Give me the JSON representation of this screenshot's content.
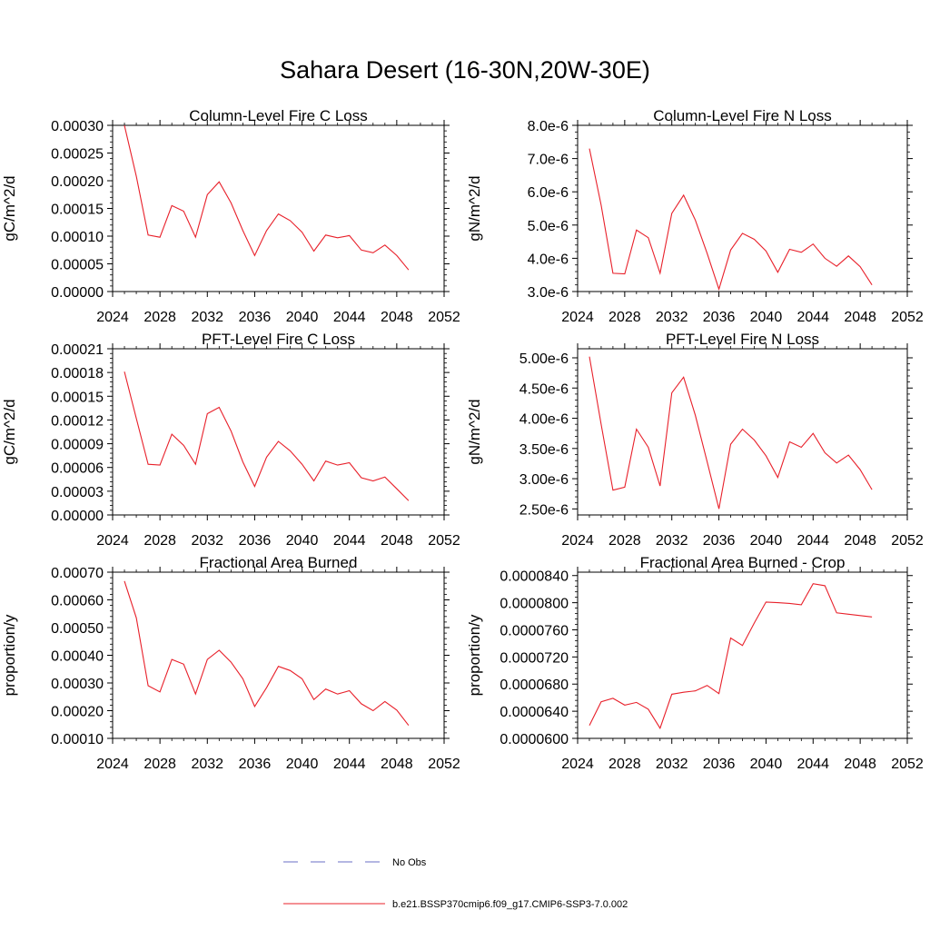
{
  "page": {
    "title": "Sahara Desert (16-30N,20W-30E)"
  },
  "legend": {
    "entries": [
      {
        "label": "No Obs",
        "color": "#6a6fc6",
        "dash": "dashed"
      },
      {
        "label": "b.e21.BSSP370cmip6.f09_g17.CMIP6-SSP3-7.0.002",
        "color": "#e8202a",
        "dash": "solid"
      }
    ]
  },
  "chart_data": [
    {
      "type": "line",
      "title": "Column-Level Fire C Loss",
      "ylabel": "gC/m^2/d",
      "xlim": [
        2024,
        2052
      ],
      "ylim": [
        0.0,
        0.0003
      ],
      "xticks": [
        2024,
        2028,
        2032,
        2036,
        2040,
        2044,
        2048,
        2052
      ],
      "yticks": [
        0.0,
        5e-05,
        0.0001,
        0.00015,
        0.0002,
        0.00025,
        0.0003
      ],
      "ytick_labels": [
        "0.00000",
        "0.00005",
        "0.00010",
        "0.00015",
        "0.00020",
        "0.00025",
        "0.00030"
      ],
      "series": [
        {
          "color": "#e8202a",
          "x": [
            2025,
            2026,
            2027,
            2028,
            2029,
            2030,
            2031,
            2032,
            2033,
            2034,
            2035,
            2036,
            2037,
            2038,
            2039,
            2040,
            2041,
            2042,
            2043,
            2044,
            2045,
            2046,
            2047,
            2048,
            2049
          ],
          "y": [
            0.0003,
            0.000208,
            0.000102,
            9.8e-05,
            0.000155,
            0.000145,
            9.8e-05,
            0.000175,
            0.000198,
            0.00016,
            0.00011,
            6.5e-05,
            0.00011,
            0.00014,
            0.000128,
            0.000107,
            7.3e-05,
            0.000102,
            9.7e-05,
            0.000101,
            7.5e-05,
            7e-05,
            8.4e-05,
            6.5e-05,
            3.9e-05
          ]
        }
      ]
    },
    {
      "type": "line",
      "title": "Column-Level Fire N Loss",
      "ylabel": "gN/m^2/d",
      "xlim": [
        2024,
        2052
      ],
      "ylim": [
        3e-06,
        8e-06
      ],
      "xticks": [
        2024,
        2028,
        2032,
        2036,
        2040,
        2044,
        2048,
        2052
      ],
      "yticks": [
        3e-06,
        4e-06,
        5e-06,
        6e-06,
        7e-06,
        8e-06
      ],
      "ytick_labels": [
        "3.0e-6",
        "4.0e-6",
        "5.0e-6",
        "6.0e-6",
        "7.0e-6",
        "8.0e-6"
      ],
      "series": [
        {
          "color": "#e8202a",
          "x": [
            2025,
            2026,
            2027,
            2028,
            2029,
            2030,
            2031,
            2032,
            2033,
            2034,
            2035,
            2036,
            2037,
            2038,
            2039,
            2040,
            2041,
            2042,
            2043,
            2044,
            2045,
            2046,
            2047,
            2048,
            2049
          ],
          "y": [
            7.3e-06,
            5.6e-06,
            3.55e-06,
            3.53e-06,
            4.85e-06,
            4.62e-06,
            3.55e-06,
            5.35e-06,
            5.9e-06,
            5.15e-06,
            4.15e-06,
            3.07e-06,
            4.25e-06,
            4.75e-06,
            4.57e-06,
            4.22e-06,
            3.58e-06,
            4.27e-06,
            4.18e-06,
            4.43e-06,
            4e-06,
            3.76e-06,
            4.07e-06,
            3.75e-06,
            3.2e-06
          ]
        }
      ]
    },
    {
      "type": "line",
      "title": "PFT-Level Fire C Loss",
      "ylabel": "gC/m^2/d",
      "xlim": [
        2024,
        2052
      ],
      "ylim": [
        0.0,
        0.00021
      ],
      "xticks": [
        2024,
        2028,
        2032,
        2036,
        2040,
        2044,
        2048,
        2052
      ],
      "yticks": [
        0.0,
        3e-05,
        6e-05,
        9e-05,
        0.00012,
        0.00015,
        0.00018,
        0.00021
      ],
      "ytick_labels": [
        "0.00000",
        "0.00003",
        "0.00006",
        "0.00009",
        "0.00012",
        "0.00015",
        "0.00018",
        "0.00021"
      ],
      "series": [
        {
          "color": "#e8202a",
          "x": [
            2025,
            2026,
            2027,
            2028,
            2029,
            2030,
            2031,
            2032,
            2033,
            2034,
            2035,
            2036,
            2037,
            2038,
            2039,
            2040,
            2041,
            2042,
            2043,
            2044,
            2045,
            2046,
            2047,
            2048,
            2049
          ],
          "y": [
            0.000181,
            0.000122,
            6.4e-05,
            6.3e-05,
            0.000102,
            8.8e-05,
            6.4e-05,
            0.000128,
            0.000136,
            0.000106,
            6.7e-05,
            3.6e-05,
            7.3e-05,
            9.3e-05,
            8.1e-05,
            6.4e-05,
            4.3e-05,
            6.8e-05,
            6.3e-05,
            6.6e-05,
            4.7e-05,
            4.3e-05,
            4.8e-05,
            3.3e-05,
            1.8e-05
          ]
        }
      ]
    },
    {
      "type": "line",
      "title": "PFT-Level Fire N Loss",
      "ylabel": "gN/m^2/d",
      "xlim": [
        2024,
        2052
      ],
      "ylim": [
        2.4e-06,
        5.15e-06
      ],
      "xticks": [
        2024,
        2028,
        2032,
        2036,
        2040,
        2044,
        2048,
        2052
      ],
      "yticks": [
        2.5e-06,
        3e-06,
        3.5e-06,
        4e-06,
        4.5e-06,
        5e-06
      ],
      "ytick_labels": [
        "2.50e-6",
        "3.00e-6",
        "3.50e-6",
        "4.00e-6",
        "4.50e-6",
        "5.00e-6"
      ],
      "series": [
        {
          "color": "#e8202a",
          "x": [
            2025,
            2026,
            2027,
            2028,
            2029,
            2030,
            2031,
            2032,
            2033,
            2034,
            2035,
            2036,
            2037,
            2038,
            2039,
            2040,
            2041,
            2042,
            2043,
            2044,
            2045,
            2046,
            2047,
            2048,
            2049
          ],
          "y": [
            5.02e-06,
            3.9e-06,
            2.81e-06,
            2.86e-06,
            3.82e-06,
            3.52e-06,
            2.88e-06,
            4.42e-06,
            4.68e-06,
            4.05e-06,
            3.28e-06,
            2.5e-06,
            3.57e-06,
            3.82e-06,
            3.64e-06,
            3.38e-06,
            3.02e-06,
            3.61e-06,
            3.52e-06,
            3.75e-06,
            3.43e-06,
            3.26e-06,
            3.39e-06,
            3.15e-06,
            2.82e-06
          ]
        }
      ]
    },
    {
      "type": "line",
      "title": "Fractional Area Burned",
      "ylabel": "proportion/y",
      "xlim": [
        2024,
        2052
      ],
      "ylim": [
        0.0001,
        0.0007
      ],
      "xticks": [
        2024,
        2028,
        2032,
        2036,
        2040,
        2044,
        2048,
        2052
      ],
      "yticks": [
        0.0001,
        0.0002,
        0.0003,
        0.0004,
        0.0005,
        0.0006,
        0.0007
      ],
      "ytick_labels": [
        "0.00010",
        "0.00020",
        "0.00030",
        "0.00040",
        "0.00050",
        "0.00060",
        "0.00070"
      ],
      "series": [
        {
          "color": "#e8202a",
          "x": [
            2025,
            2026,
            2027,
            2028,
            2029,
            2030,
            2031,
            2032,
            2033,
            2034,
            2035,
            2036,
            2037,
            2038,
            2039,
            2040,
            2041,
            2042,
            2043,
            2044,
            2045,
            2046,
            2047,
            2048,
            2049
          ],
          "y": [
            0.000668,
            0.000535,
            0.00029,
            0.000268,
            0.000385,
            0.000368,
            0.00026,
            0.000385,
            0.000418,
            0.000375,
            0.000315,
            0.000215,
            0.000283,
            0.00036,
            0.000345,
            0.000315,
            0.00024,
            0.000278,
            0.00026,
            0.000272,
            0.000225,
            0.0002,
            0.000233,
            0.000202,
            0.000147
          ]
        }
      ]
    },
    {
      "type": "line",
      "title": "Fractional Area Burned - Crop",
      "ylabel": "proportion/y",
      "xlim": [
        2024,
        2052
      ],
      "ylim": [
        6e-05,
        8.45e-05
      ],
      "xticks": [
        2024,
        2028,
        2032,
        2036,
        2040,
        2044,
        2048,
        2052
      ],
      "yticks": [
        6e-05,
        6.4e-05,
        6.8e-05,
        7.2e-05,
        7.6e-05,
        8e-05,
        8.4e-05
      ],
      "ytick_labels": [
        "0.0000600",
        "0.0000640",
        "0.0000680",
        "0.0000720",
        "0.0000760",
        "0.0000800",
        "0.0000840"
      ],
      "series": [
        {
          "color": "#e8202a",
          "x": [
            2025,
            2026,
            2027,
            2028,
            2029,
            2030,
            2031,
            2032,
            2033,
            2034,
            2035,
            2036,
            2037,
            2038,
            2039,
            2040,
            2041,
            2042,
            2043,
            2044,
            2045,
            2046,
            2047,
            2048,
            2049
          ],
          "y": [
            6.19e-05,
            6.54e-05,
            6.59e-05,
            6.49e-05,
            6.53e-05,
            6.43e-05,
            6.15e-05,
            6.65e-05,
            6.68e-05,
            6.7e-05,
            6.78e-05,
            6.66e-05,
            7.48e-05,
            7.37e-05,
            7.7e-05,
            8.01e-05,
            8e-05,
            7.99e-05,
            7.97e-05,
            8.28e-05,
            8.25e-05,
            7.85e-05,
            7.83e-05,
            7.81e-05,
            7.79e-05
          ]
        }
      ]
    }
  ]
}
